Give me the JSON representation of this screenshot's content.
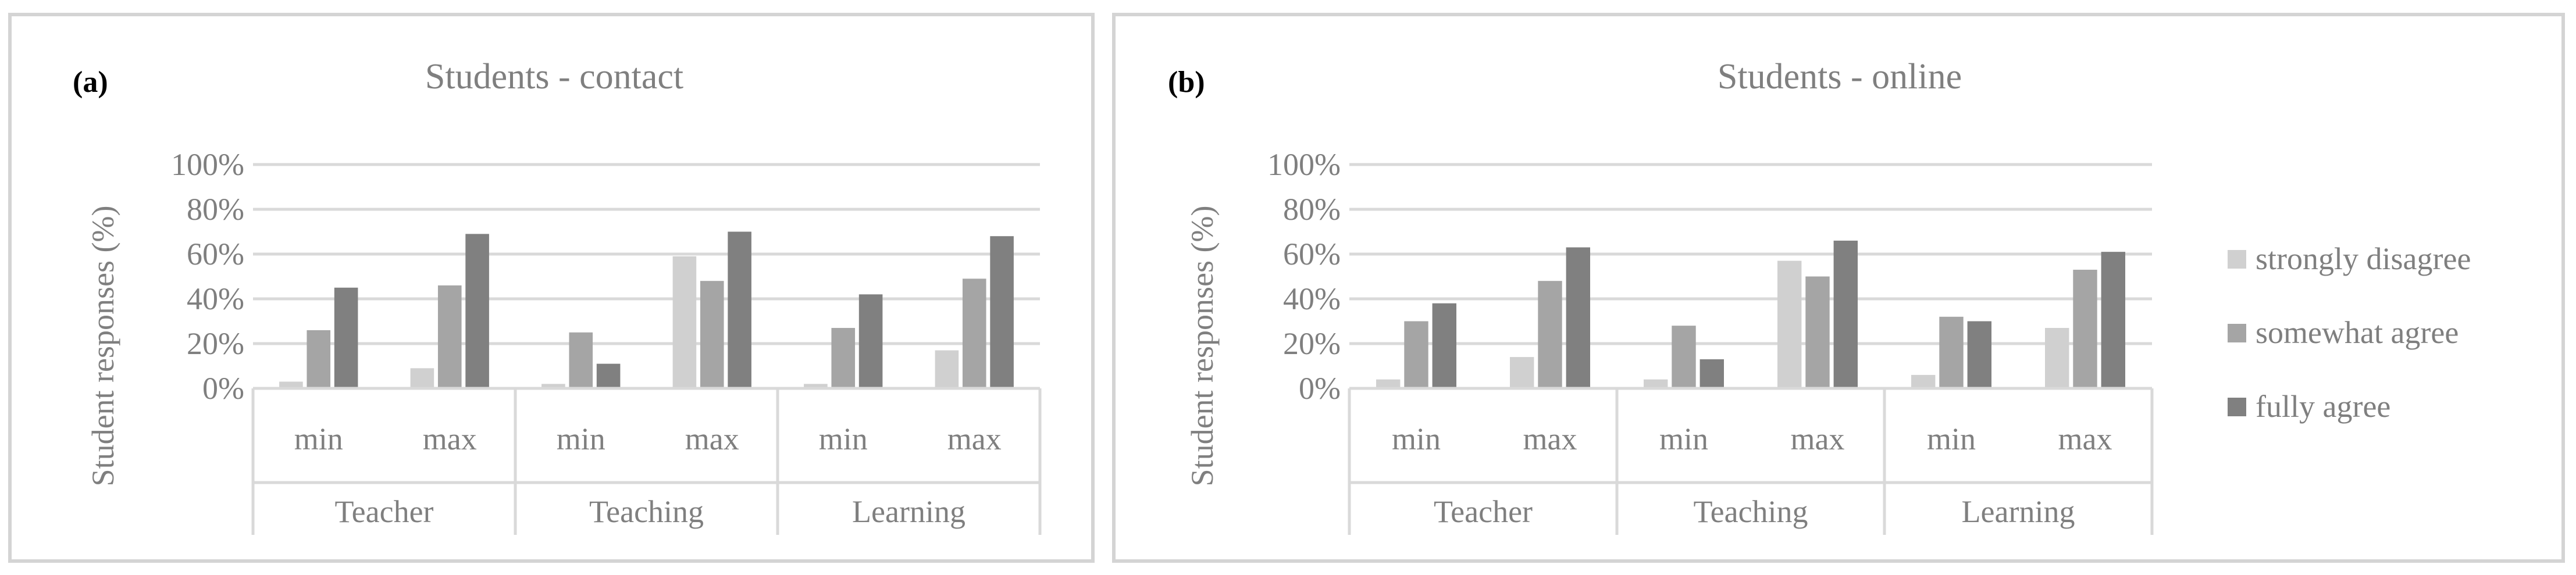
{
  "colors": {
    "strongly_disagree": "#d0d0d0",
    "somewhat_agree": "#a5a5a5",
    "fully_agree": "#808080",
    "text": "#7f7f7f",
    "grid": "#d9d9d9",
    "panel_border": "#d4d4d4"
  },
  "legend": {
    "items": [
      "strongly disagree",
      "somewhat agree",
      "fully agree"
    ],
    "placement": "right"
  },
  "chart_data": [
    {
      "type": "bar",
      "panel_label": "(a)",
      "title": "Students - contact",
      "ylabel": "Student responses (%)",
      "ylim": [
        0,
        100
      ],
      "yticks": [
        "0%",
        "20%",
        "40%",
        "60%",
        "80%",
        "100%"
      ],
      "grid": true,
      "groups": [
        "Teacher",
        "Teaching",
        "Learning"
      ],
      "categories": [
        "min",
        "max",
        "min",
        "max",
        "min",
        "max"
      ],
      "series": [
        {
          "name": "strongly disagree",
          "values": [
            3,
            9,
            2,
            59,
            2,
            17
          ]
        },
        {
          "name": "somewhat agree",
          "values": [
            26,
            46,
            25,
            48,
            27,
            49
          ]
        },
        {
          "name": "fully agree",
          "values": [
            45,
            69,
            11,
            70,
            42,
            68
          ]
        }
      ]
    },
    {
      "type": "bar",
      "panel_label": "(b)",
      "title": "Students - online",
      "ylabel": "Student responses (%)",
      "ylim": [
        0,
        100
      ],
      "yticks": [
        "0%",
        "20%",
        "40%",
        "60%",
        "80%",
        "100%"
      ],
      "grid": true,
      "groups": [
        "Teacher",
        "Teaching",
        "Learning"
      ],
      "categories": [
        "min",
        "max",
        "min",
        "max",
        "min",
        "max"
      ],
      "series": [
        {
          "name": "strongly disagree",
          "values": [
            4,
            14,
            4,
            57,
            6,
            27
          ]
        },
        {
          "name": "somewhat agree",
          "values": [
            30,
            48,
            28,
            50,
            32,
            53
          ]
        },
        {
          "name": "fully agree",
          "values": [
            38,
            63,
            13,
            66,
            30,
            61
          ]
        }
      ]
    }
  ]
}
